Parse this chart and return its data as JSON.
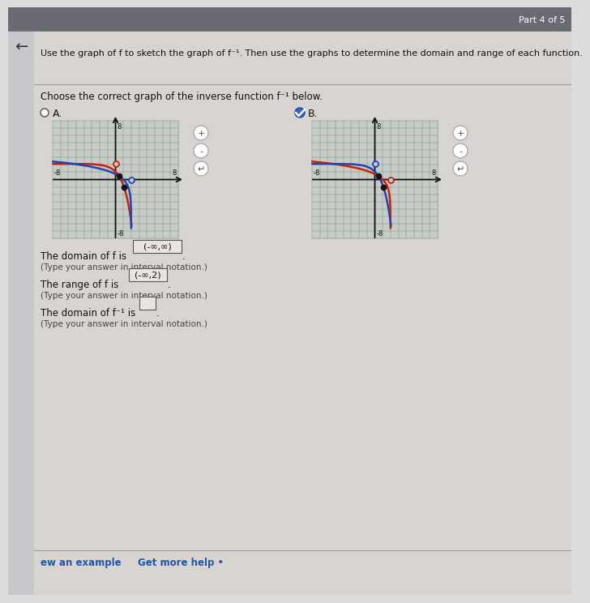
{
  "title_text": "Use the graph of f to sketch the graph of f⁻¹. Then use the graphs to determine the domain and range of each function.",
  "part_label": "Part 4 of 5",
  "choose_text": "Choose the correct graph of the inverse function f⁻¹ below.",
  "option_A": "A.",
  "option_B": "B.",
  "page_bg": "#dcdcdc",
  "top_bar_bg": "#b0b0b8",
  "left_bar_color": "#888899",
  "grid_bg": "#c8ccc8",
  "grid_color": "#5a7a5a",
  "axis_color": "#111111",
  "red_color": "#cc2200",
  "blue_color": "#2244bb",
  "dot_color": "#111111",
  "domain_f_box": "(-∞,∞)",
  "range_f_box": "(-∞,2)",
  "magnifier_color": "#888888",
  "text_color": "#111111",
  "subtext_color": "#444444"
}
